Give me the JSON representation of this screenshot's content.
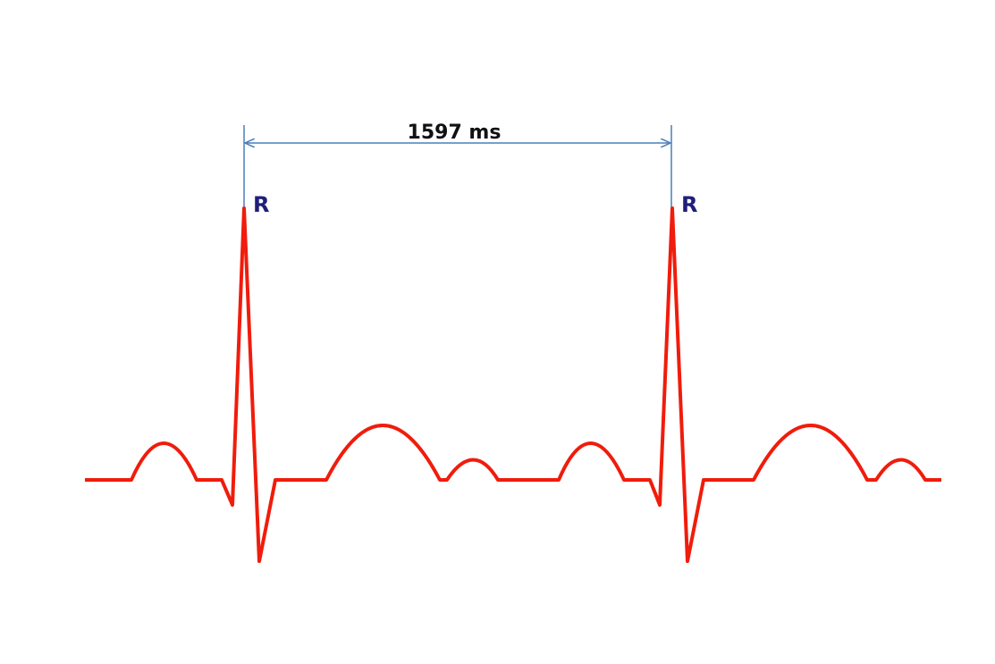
{
  "interval": {
    "label": "1597 ms"
  },
  "peaks": [
    {
      "label": "R"
    },
    {
      "label": "R"
    }
  ]
}
